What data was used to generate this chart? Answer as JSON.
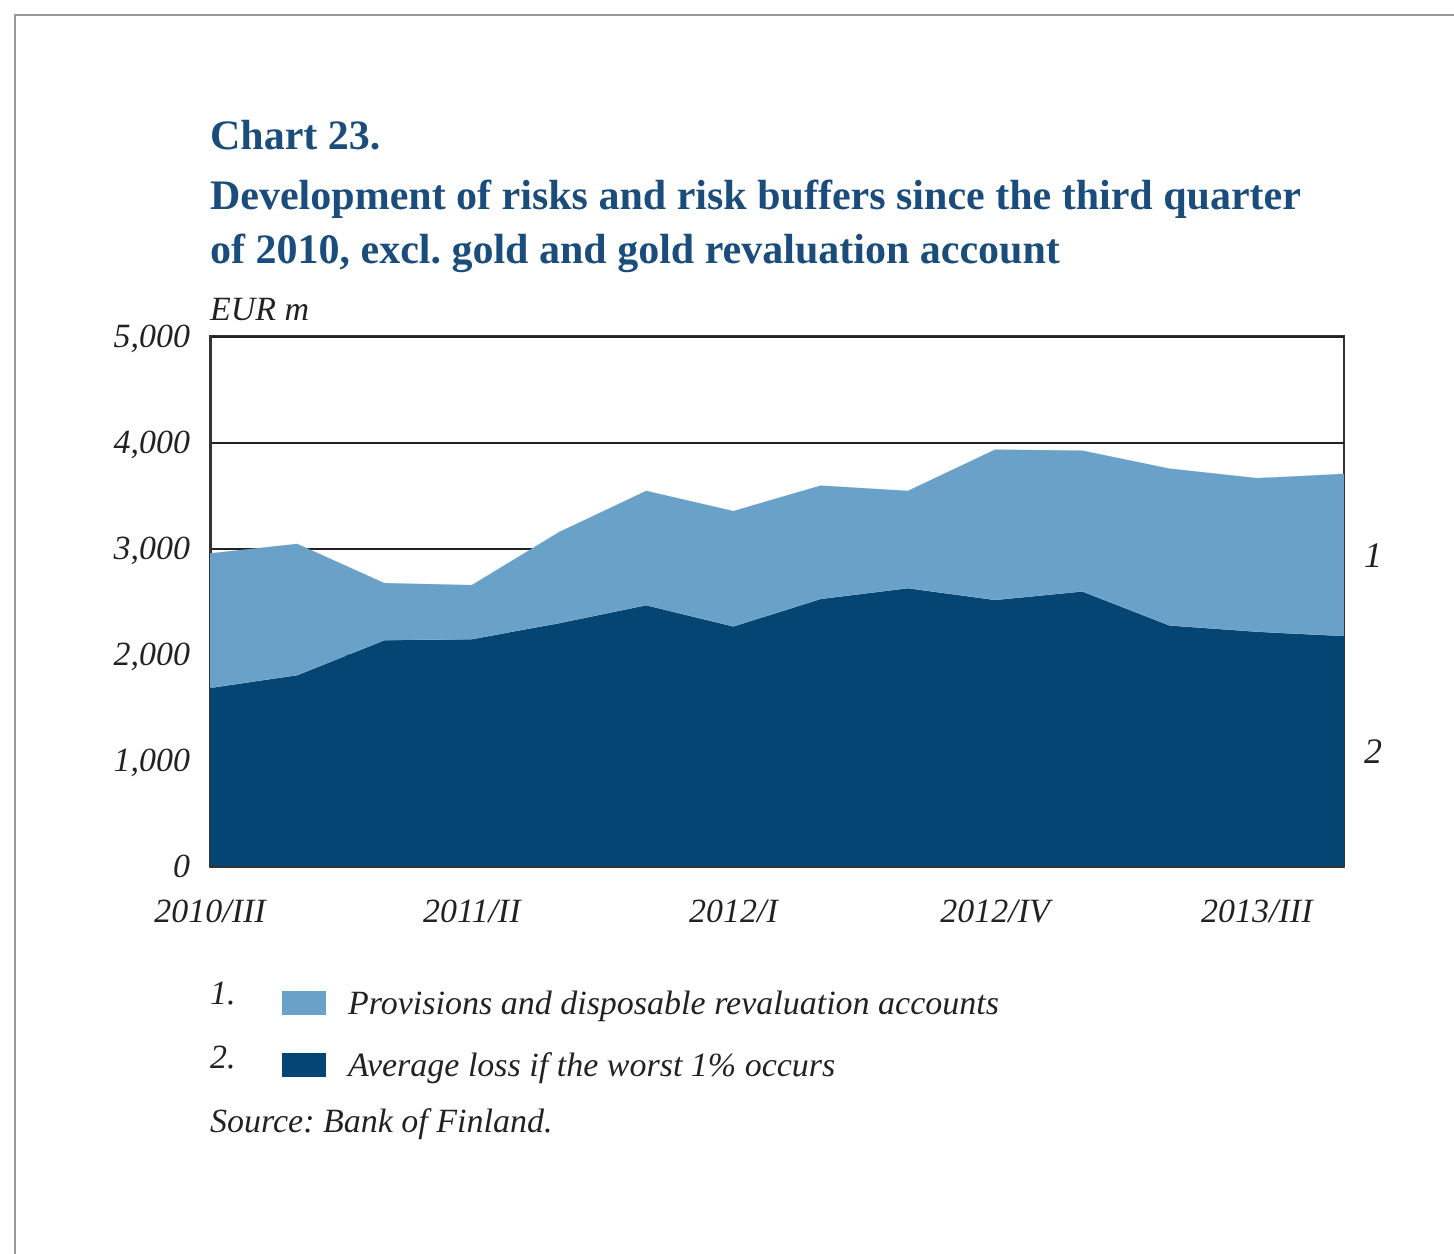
{
  "chart_data": {
    "type": "area",
    "stacked": true,
    "title": "Chart 23.",
    "subtitle": "Development of risks and risk buffers since the third quarter of 2010, excl. gold and gold revaluation account",
    "ylabel": "EUR m",
    "categories": [
      "2010/III",
      null,
      null,
      "2011/II",
      null,
      null,
      "2012/I",
      null,
      null,
      "2012/IV",
      null,
      null,
      "2013/III",
      null
    ],
    "series": [
      {
        "name": "Average loss if the worst 1% occurs",
        "color": "#054573",
        "values": [
          1680,
          1800,
          2130,
          2140,
          2290,
          2460,
          2260,
          2520,
          2620,
          2510,
          2590,
          2270,
          2210,
          2170
        ]
      },
      {
        "name": "Provisions and disposable revaluation accounts",
        "color": "#6aa1c8",
        "values": [
          1270,
          1240,
          540,
          510,
          860,
          1080,
          1090,
          1070,
          920,
          1420,
          1330,
          1480,
          1450,
          1530
        ]
      }
    ],
    "ylim": [
      0,
      5000
    ],
    "yticks": [
      0,
      {
        "value": 1000,
        "label": "1,000"
      },
      {
        "value": 2000,
        "label": "2,000"
      },
      {
        "value": 3000,
        "label": "3,000"
      },
      {
        "value": 4000,
        "label": "4,000"
      },
      {
        "value": 5000,
        "label": "5,000"
      }
    ],
    "grid": "y",
    "legend": "bottom",
    "annotations": [
      "1",
      "2",
      "1.",
      "2.",
      "Source: Bank of Finland."
    ]
  }
}
